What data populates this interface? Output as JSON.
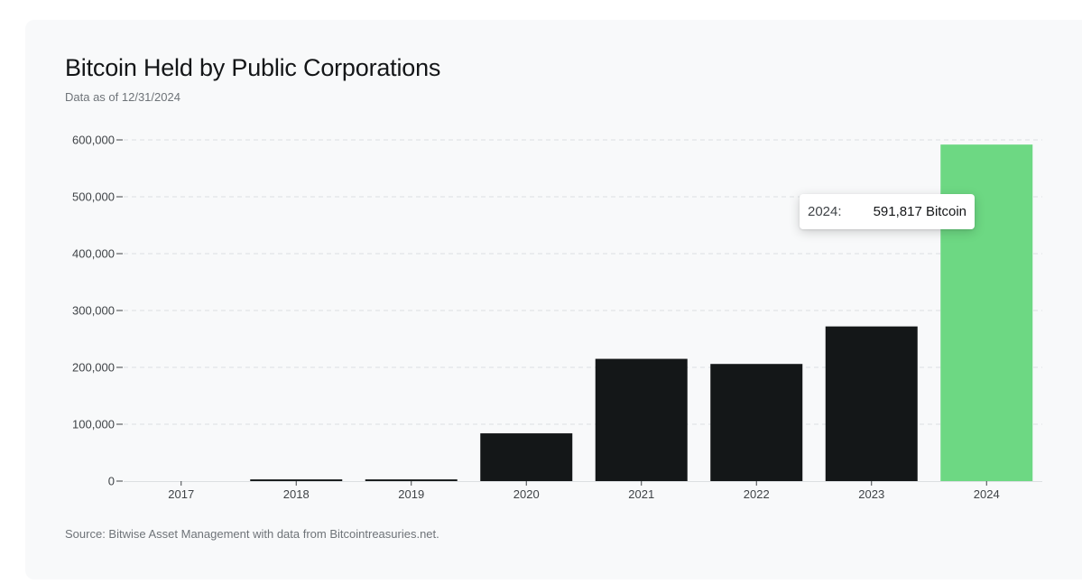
{
  "title": "Bitcoin Held by Public Corporations",
  "subtitle": "Data as of 12/31/2024",
  "source": "Source: Bitwise Asset Management with data from Bitcointreasuries.net.",
  "tooltip": {
    "label": "2024:",
    "value": "591,817 Bitcoin"
  },
  "colors": {
    "bar": "#141718",
    "highlight": "#6dd883",
    "grid": "#dcdfe2",
    "axis": "#3f4347"
  },
  "chart_data": {
    "type": "bar",
    "categories": [
      "2017",
      "2018",
      "2019",
      "2020",
      "2021",
      "2022",
      "2023",
      "2024"
    ],
    "values": [
      0,
      3000,
      3000,
      84000,
      215000,
      206000,
      272000,
      591817
    ],
    "highlight_index": 7,
    "yticks": [
      0,
      100000,
      200000,
      300000,
      400000,
      500000,
      600000
    ],
    "ytick_labels": [
      "0",
      "100,000",
      "200,000",
      "300,000",
      "400,000",
      "500,000",
      "600,000"
    ],
    "ylim": [
      0,
      600000
    ],
    "grid": true,
    "legend": false
  }
}
